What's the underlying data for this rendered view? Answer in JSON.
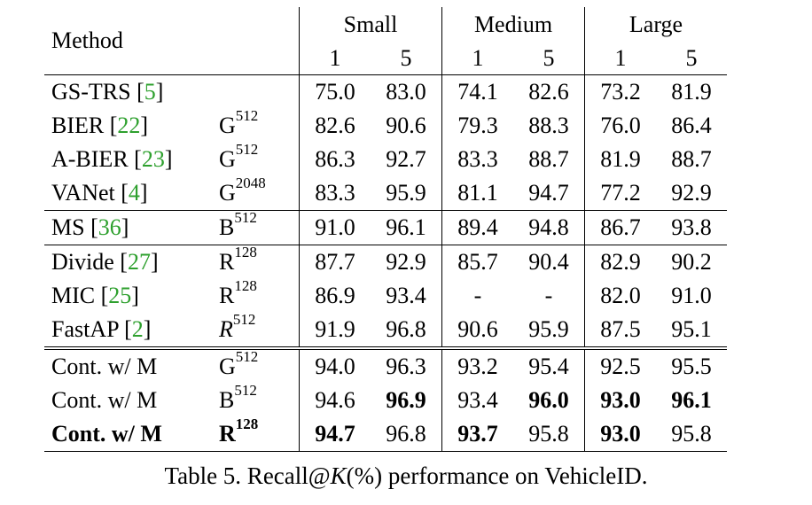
{
  "header": {
    "method_label": "Method",
    "groups": [
      "Small",
      "Medium",
      "Large"
    ],
    "ks": [
      "1",
      "5",
      "1",
      "5",
      "1",
      "5"
    ]
  },
  "rows": [
    {
      "name": "GS-TRS ",
      "cite": "5",
      "dim_letter": "",
      "dim_exp": "",
      "dim_italic": false,
      "values": [
        "75.0",
        "83.0",
        "74.1",
        "82.6",
        "73.2",
        "81.9"
      ],
      "bold": [
        false,
        false,
        false,
        false,
        false,
        false
      ],
      "row_bold": false
    },
    {
      "name": "BIER ",
      "cite": "22",
      "dim_letter": "G",
      "dim_exp": "512",
      "dim_italic": false,
      "values": [
        "82.6",
        "90.6",
        "79.3",
        "88.3",
        "76.0",
        "86.4"
      ],
      "bold": [
        false,
        false,
        false,
        false,
        false,
        false
      ],
      "row_bold": false
    },
    {
      "name": "A-BIER ",
      "cite": "23",
      "dim_letter": "G",
      "dim_exp": "512",
      "dim_italic": false,
      "values": [
        "86.3",
        "92.7",
        "83.3",
        "88.7",
        "81.9",
        "88.7"
      ],
      "bold": [
        false,
        false,
        false,
        false,
        false,
        false
      ],
      "row_bold": false
    },
    {
      "name": "VANet ",
      "cite": "4",
      "dim_letter": "G",
      "dim_exp": "2048",
      "dim_italic": false,
      "values": [
        "83.3",
        "95.9",
        "81.1",
        "94.7",
        "77.2",
        "92.9"
      ],
      "bold": [
        false,
        false,
        false,
        false,
        false,
        false
      ],
      "row_bold": false
    },
    {
      "name": "MS ",
      "cite": "36",
      "dim_letter": "B",
      "dim_exp": "512",
      "dim_italic": false,
      "values": [
        "91.0",
        "96.1",
        "89.4",
        "94.8",
        "86.7",
        "93.8"
      ],
      "bold": [
        false,
        false,
        false,
        false,
        false,
        false
      ],
      "row_bold": false
    },
    {
      "name": "Divide ",
      "cite": "27",
      "dim_letter": "R",
      "dim_exp": "128",
      "dim_italic": false,
      "values": [
        "87.7",
        "92.9",
        "85.7",
        "90.4",
        "82.9",
        "90.2"
      ],
      "bold": [
        false,
        false,
        false,
        false,
        false,
        false
      ],
      "row_bold": false
    },
    {
      "name": "MIC ",
      "cite": "25",
      "dim_letter": "R",
      "dim_exp": "128",
      "dim_italic": false,
      "values": [
        "86.9",
        "93.4",
        "-",
        "-",
        "82.0",
        "91.0"
      ],
      "bold": [
        false,
        false,
        false,
        false,
        false,
        false
      ],
      "row_bold": false
    },
    {
      "name": "FastAP ",
      "cite": "2",
      "dim_letter": "R",
      "dim_exp": "512",
      "dim_italic": true,
      "values": [
        "91.9",
        "96.8",
        "90.6",
        "95.9",
        "87.5",
        "95.1"
      ],
      "bold": [
        false,
        false,
        false,
        false,
        false,
        false
      ],
      "row_bold": false
    },
    {
      "name": "Cont. w/ M",
      "cite": "",
      "dim_letter": "G",
      "dim_exp": "512",
      "dim_italic": false,
      "values": [
        "94.0",
        "96.3",
        "93.2",
        "95.4",
        "92.5",
        "95.5"
      ],
      "bold": [
        false,
        false,
        false,
        false,
        false,
        false
      ],
      "row_bold": false
    },
    {
      "name": "Cont. w/ M",
      "cite": "",
      "dim_letter": "B",
      "dim_exp": "512",
      "dim_italic": false,
      "values": [
        "94.6",
        "96.9",
        "93.4",
        "96.0",
        "93.0",
        "96.1"
      ],
      "bold": [
        false,
        true,
        false,
        true,
        true,
        true
      ],
      "row_bold": false
    },
    {
      "name": "Cont. w/ M",
      "cite": "",
      "dim_letter": "R",
      "dim_exp": "128",
      "dim_italic": false,
      "values": [
        "94.7",
        "96.8",
        "93.7",
        "95.8",
        "93.0",
        "95.8"
      ],
      "bold": [
        true,
        false,
        true,
        false,
        true,
        false
      ],
      "row_bold": true
    }
  ],
  "caption": {
    "prefix": "Table 5. Recall@",
    "k_symbol": "K",
    "percent": "(%)",
    "suffix": " performance on VehicleID."
  }
}
